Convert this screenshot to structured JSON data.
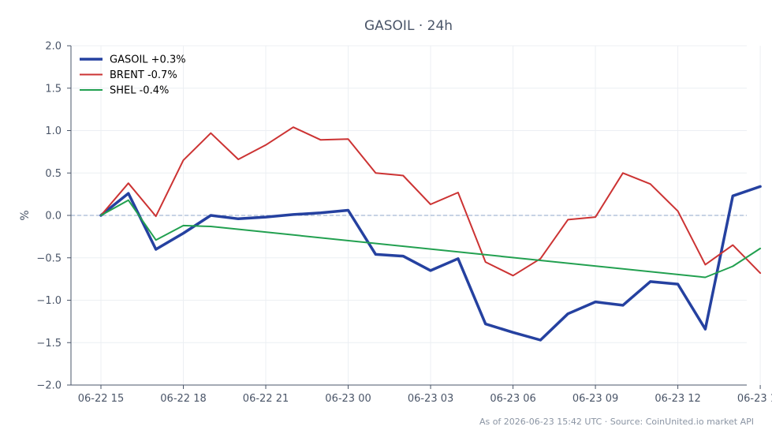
{
  "chart_data": {
    "type": "line",
    "title": "GASOIL · 24h",
    "ylabel": "%",
    "xlabel": "",
    "ylim": [
      -2.0,
      2.0
    ],
    "yticks": [
      2.0,
      1.5,
      1.0,
      0.5,
      0.0,
      -0.5,
      -1.0,
      -1.5,
      -2.0
    ],
    "ytick_labels": [
      "2.0",
      "1.5",
      "1.0",
      "0.5",
      "0.0",
      "−0.5",
      "−1.0",
      "−1.5",
      "−2.0"
    ],
    "xlim": [
      0,
      24.6
    ],
    "xticks": [
      0,
      3,
      6,
      9,
      12,
      15,
      18,
      21,
      24
    ],
    "xtick_labels": [
      "06-22 15",
      "06-22 18",
      "06-22 21",
      "06-23 00",
      "06-23 03",
      "06-23 06",
      "06-23 09",
      "06-23 12",
      "06-23 15"
    ],
    "grid": true,
    "baseline": 0,
    "legend_position": "top-left",
    "series": [
      {
        "name": "GASOIL +0.3%",
        "color": "#2541a0",
        "width": 3.5,
        "x": [
          0,
          1,
          2,
          3,
          4,
          5,
          6,
          7,
          8,
          9,
          10,
          11,
          12,
          13,
          14,
          15,
          16,
          17,
          18,
          19,
          20,
          21,
          22,
          23,
          24
        ],
        "y": [
          0.0,
          0.26,
          -0.4,
          -0.21,
          0.0,
          -0.04,
          -0.02,
          0.01,
          0.03,
          0.06,
          -0.46,
          -0.48,
          -0.65,
          -0.51,
          -1.28,
          -1.38,
          -1.47,
          -1.16,
          -1.02,
          -1.06,
          -0.78,
          -0.81,
          -1.34,
          0.23,
          0.34
        ]
      },
      {
        "name": "BRENT -0.7%",
        "color": "#cc3333",
        "width": 2,
        "x": [
          0,
          1,
          2,
          3,
          4,
          5,
          6,
          7,
          8,
          9,
          10,
          11,
          12,
          13,
          14,
          15,
          16,
          17,
          18,
          19,
          20,
          21,
          22,
          23,
          24
        ],
        "y": [
          0.0,
          0.38,
          -0.01,
          0.65,
          0.97,
          0.66,
          0.83,
          1.04,
          0.89,
          0.9,
          0.5,
          0.47,
          0.13,
          0.27,
          -0.55,
          -0.71,
          -0.51,
          -0.05,
          -0.02,
          0.5,
          0.37,
          0.05,
          -0.58,
          -0.35,
          -0.68
        ]
      },
      {
        "name": "SHEL -0.4%",
        "color": "#22a050",
        "width": 2,
        "x": [
          0,
          1,
          2,
          3,
          4,
          22,
          23,
          24
        ],
        "y": [
          0.0,
          0.18,
          -0.29,
          -0.12,
          -0.13,
          -0.73,
          -0.6,
          -0.39
        ]
      }
    ],
    "footnote": "As of 2026-06-23 15:42 UTC · Source: CoinUnited.io market API"
  }
}
